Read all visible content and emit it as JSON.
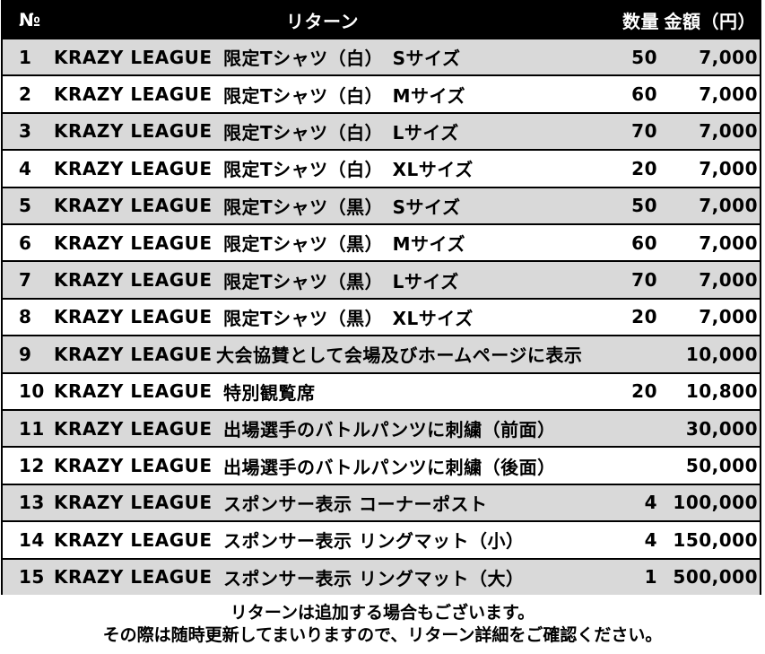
{
  "table": {
    "header": [
      "№",
      "リターン",
      "数量",
      "金額（円）"
    ],
    "rows": [
      [
        "1",
        "KRAZY LEAGUE",
        "限定Tシャツ（白）　Sサイズ",
        50,
        "7,000"
      ],
      [
        "2",
        "KRAZY LEAGUE",
        "限定Tシャツ（白）　Mサイズ",
        60,
        "7,000"
      ],
      [
        "3",
        "KRAZY LEAGUE",
        "限定Tシャツ（白）　Lサイズ",
        70,
        "7,000"
      ],
      [
        "4",
        "KRAZY LEAGUE",
        "限定Tシャツ（白）　XLサイズ",
        20,
        "7,000"
      ],
      [
        "5",
        "KRAZY LEAGUE",
        "限定Tシャツ（黒）　Sサイズ",
        50,
        "7,000"
      ],
      [
        "6",
        "KRAZY LEAGUE",
        "限定Tシャツ（黒）　Mサイズ",
        60,
        "7,000"
      ],
      [
        "7",
        "KRAZY LEAGUE",
        "限定Tシャツ（黒）　Lサイズ",
        70,
        "7,000"
      ],
      [
        "8",
        "KRAZY LEAGUE",
        "限定Tシャツ（黒）　XLサイズ",
        20,
        "7,000"
      ],
      [
        "9",
        "KRAZY LEAGUE",
        "大会協賛として会場及びホームページに表示",
        null,
        "10,000"
      ],
      [
        "10",
        "KRAZY LEAGUE",
        "特別観覧席",
        20,
        "10,800"
      ],
      [
        "11",
        "KRAZY LEAGUE",
        "出場選手のバトルパンツに刺繍（前面）",
        null,
        "30,000"
      ],
      [
        "12",
        "KRAZY LEAGUE",
        "出場選手のバトルパンツに刺繍（後面）",
        null,
        "50,000"
      ],
      [
        "13",
        "KRAZY LEAGUE",
        "スポンサー表示 コーナーポスト",
        4,
        "100,000"
      ],
      [
        "14",
        "KRAZY LEAGUE",
        "スポンサー表示 リングマット（小）",
        4,
        "150,000"
      ],
      [
        "15",
        "KRAZY LEAGUE",
        "スポンサー表示 リングマット（大）",
        1,
        "500,000"
      ]
    ]
  },
  "footer": [
    "リターンは追加する場合もございます。",
    "その際は随時更新してまいりますので、リターン詳細をご確認ください。"
  ]
}
